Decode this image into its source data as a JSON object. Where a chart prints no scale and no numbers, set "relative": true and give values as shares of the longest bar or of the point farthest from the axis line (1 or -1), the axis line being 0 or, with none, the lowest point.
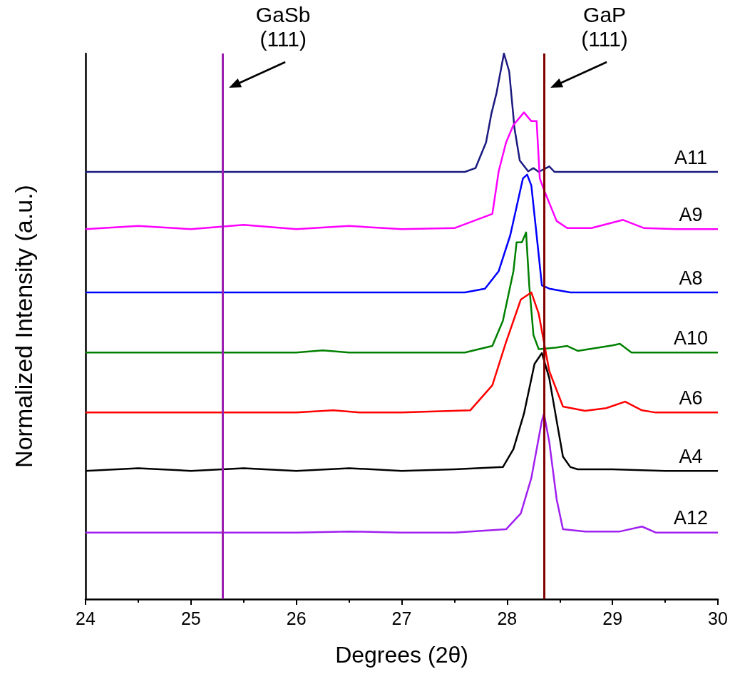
{
  "chart_data": {
    "type": "line",
    "relative": true,
    "xlabel": "Degrees (2θ)",
    "ylabel": "Normalized Intensity (a.u.)",
    "xlim": [
      24,
      30
    ],
    "xticks": [
      24,
      25,
      26,
      27,
      28,
      29,
      30
    ],
    "marker": "none",
    "ref_lines": [
      {
        "axis": "x",
        "value": 25.3,
        "label": "GaSb\n(111)",
        "color": "#9b1fb0"
      },
      {
        "axis": "x",
        "value": 28.35,
        "label": "GaP\n(111)",
        "color": "#800000"
      }
    ],
    "series": [
      {
        "name": "A11",
        "color": "#1a1a80",
        "x": [
          24,
          25,
          26,
          27,
          27.6,
          27.7,
          27.8,
          27.85,
          27.9,
          27.97,
          28.02,
          28.07,
          28.12,
          28.2,
          28.25,
          28.3,
          28.4,
          28.45,
          29,
          30
        ],
        "values": [
          0.783,
          0.783,
          0.783,
          0.783,
          0.783,
          0.79,
          0.837,
          0.889,
          0.928,
          1,
          0.967,
          0.863,
          0.804,
          0.784,
          0.79,
          0.783,
          0.793,
          0.783,
          0.783,
          0.783
        ]
      },
      {
        "name": "A9",
        "color": "#ff00ff",
        "x": [
          24,
          24.5,
          25,
          25.5,
          26,
          26.5,
          27,
          27.5,
          27.86,
          27.92,
          27.99,
          28.06,
          28.16,
          28.23,
          28.28,
          28.31,
          28.36,
          28.47,
          28.57,
          28.8,
          29.1,
          29.3,
          29.6,
          30
        ],
        "values": [
          0.678,
          0.684,
          0.678,
          0.686,
          0.678,
          0.684,
          0.678,
          0.68,
          0.706,
          0.784,
          0.837,
          0.869,
          0.892,
          0.876,
          0.876,
          0.771,
          0.745,
          0.693,
          0.68,
          0.68,
          0.695,
          0.68,
          0.678,
          0.678
        ]
      },
      {
        "name": "A8",
        "color": "#0000ff",
        "x": [
          24,
          25,
          26,
          27,
          27.6,
          27.79,
          27.92,
          28.03,
          28.09,
          28.15,
          28.19,
          28.23,
          28.28,
          28.33,
          28.4,
          28.6,
          29,
          30
        ],
        "values": [
          0.562,
          0.562,
          0.562,
          0.562,
          0.562,
          0.569,
          0.601,
          0.667,
          0.719,
          0.771,
          0.778,
          0.758,
          0.667,
          0.575,
          0.569,
          0.562,
          0.562,
          0.562
        ]
      },
      {
        "name": "A10",
        "color": "#008000",
        "x": [
          24,
          25,
          26,
          26.25,
          26.5,
          27,
          27.6,
          27.86,
          27.96,
          28.06,
          28.09,
          28.14,
          28.18,
          28.21,
          28.25,
          28.3,
          28.47,
          28.57,
          28.67,
          29,
          29.07,
          29.18,
          29.5,
          30
        ],
        "values": [
          0.452,
          0.452,
          0.452,
          0.456,
          0.452,
          0.452,
          0.452,
          0.464,
          0.51,
          0.601,
          0.654,
          0.654,
          0.672,
          0.575,
          0.484,
          0.458,
          0.461,
          0.464,
          0.455,
          0.465,
          0.468,
          0.452,
          0.452,
          0.452
        ]
      },
      {
        "name": "A6",
        "color": "#ff0000",
        "x": [
          24,
          25,
          26,
          26.35,
          26.6,
          27,
          27.65,
          27.86,
          27.99,
          28.13,
          28.23,
          28.3,
          28.4,
          28.53,
          28.74,
          28.94,
          29.12,
          29.28,
          29.41,
          30
        ],
        "values": [
          0.342,
          0.342,
          0.342,
          0.346,
          0.342,
          0.342,
          0.346,
          0.392,
          0.471,
          0.549,
          0.562,
          0.523,
          0.418,
          0.353,
          0.345,
          0.35,
          0.362,
          0.346,
          0.342,
          0.342
        ]
      },
      {
        "name": "A4",
        "color": "#000000",
        "x": [
          24,
          24.5,
          25,
          25.5,
          26,
          26.5,
          27,
          27.5,
          27.96,
          28.06,
          28.16,
          28.26,
          28.33,
          28.4,
          28.47,
          28.53,
          28.6,
          28.67,
          29,
          29.5,
          30
        ],
        "values": [
          0.235,
          0.24,
          0.235,
          0.24,
          0.235,
          0.24,
          0.235,
          0.238,
          0.242,
          0.275,
          0.34,
          0.431,
          0.451,
          0.405,
          0.327,
          0.261,
          0.242,
          0.238,
          0.238,
          0.235,
          0.235
        ]
      },
      {
        "name": "A12",
        "color": "#a020f0",
        "x": [
          24,
          25,
          26,
          26.5,
          27,
          27.5,
          27.99,
          28.13,
          28.23,
          28.33,
          28.35,
          28.4,
          28.47,
          28.53,
          28.74,
          29.07,
          29.28,
          29.41,
          30
        ],
        "values": [
          0.122,
          0.122,
          0.122,
          0.124,
          0.122,
          0.122,
          0.128,
          0.157,
          0.222,
          0.327,
          0.34,
          0.288,
          0.183,
          0.128,
          0.124,
          0.124,
          0.133,
          0.122,
          0.122
        ]
      }
    ]
  }
}
